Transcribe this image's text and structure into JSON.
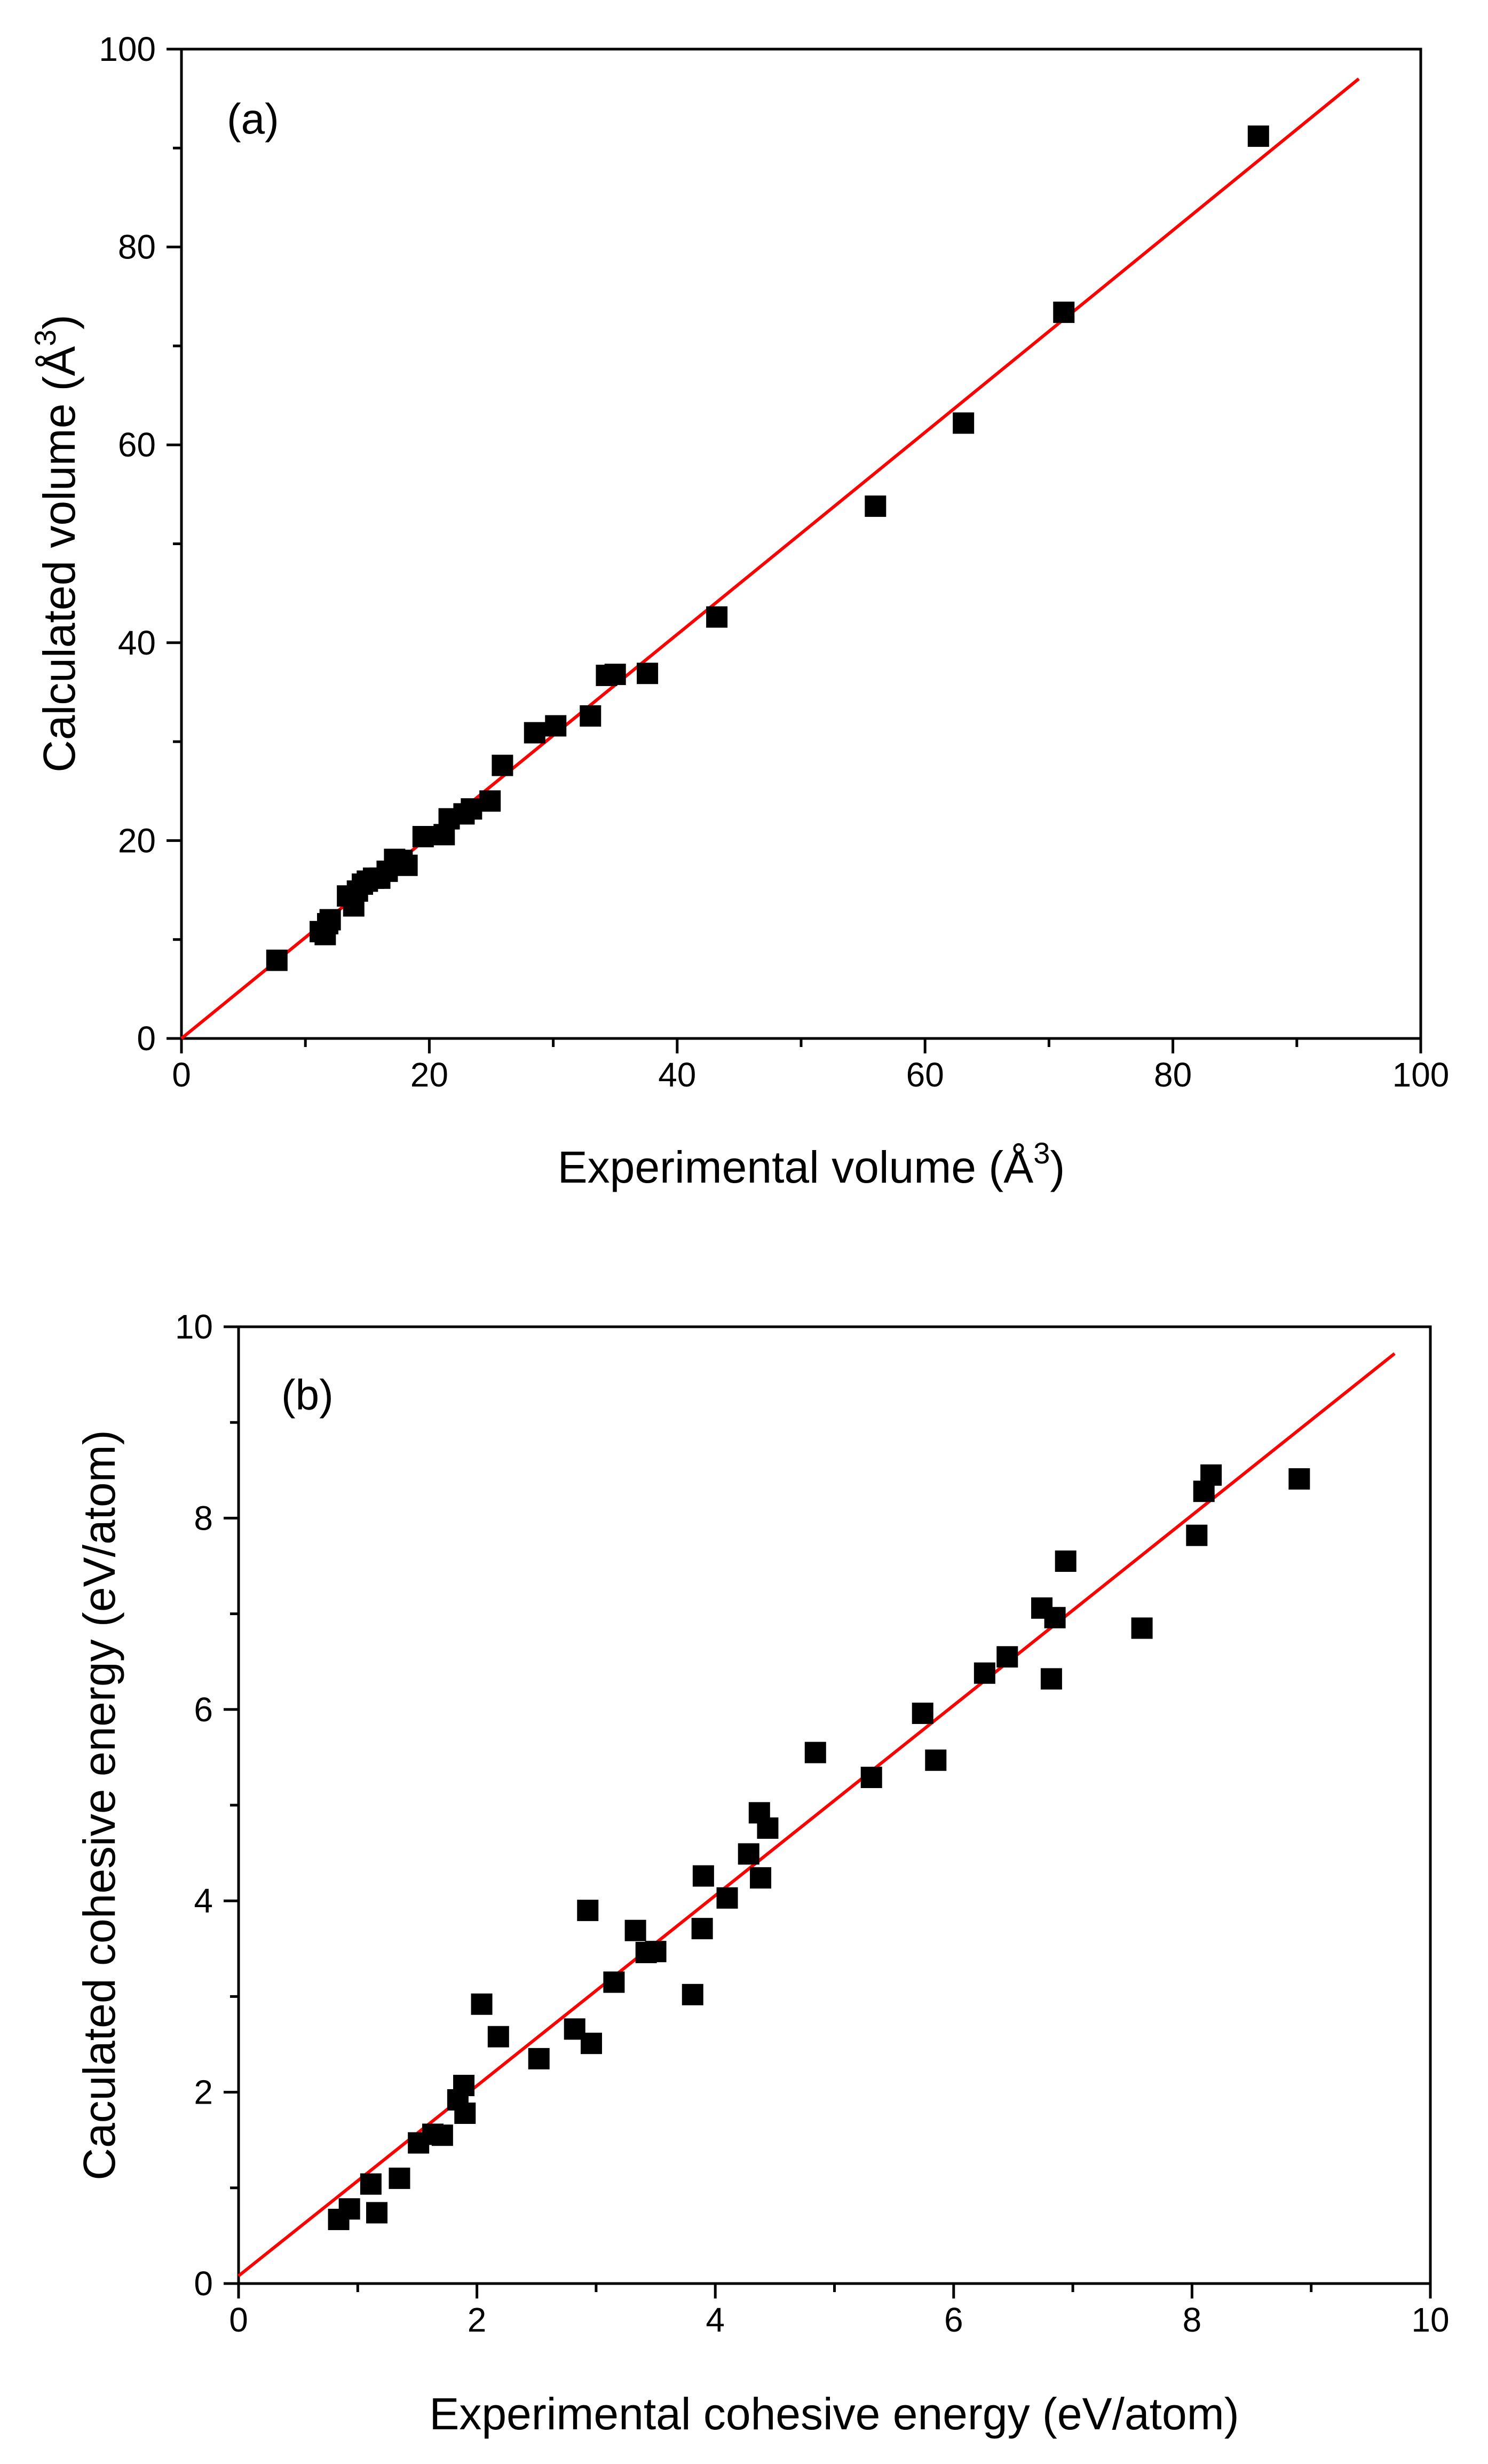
{
  "colors": {
    "axis": "#000000",
    "fit_line": "#ff0000",
    "markers": "#000000",
    "background": "#ffffff"
  },
  "chart_data": [
    {
      "type": "scatter",
      "panel": "(a)",
      "xlabel": "Experimental volume (Å",
      "ylabel": "Calculated volume (Å",
      "label_superscript": "3",
      "label_suffix": ")",
      "xlim": [
        0,
        100
      ],
      "ylim": [
        0,
        100
      ],
      "xticks": [
        "0",
        "20",
        "40",
        "60",
        "80",
        "100"
      ],
      "yticks": [
        "0",
        "20",
        "40",
        "60",
        "80",
        "100"
      ],
      "fit_line": {
        "x": [
          0,
          95
        ],
        "y": [
          0,
          97
        ]
      },
      "series": [
        {
          "name": "data",
          "marker": "square",
          "x": [
            7.7,
            11.2,
            11.6,
            11.8,
            12.0,
            13.4,
            13.9,
            14.2,
            14.6,
            15.0,
            15.5,
            16.0,
            16.6,
            17.2,
            17.8,
            18.2,
            19.5,
            21.2,
            21.6,
            22.8,
            23.4,
            24.9,
            25.9,
            28.5,
            30.2,
            33.0,
            34.3,
            35.0,
            37.6,
            43.2,
            56.0,
            63.1,
            71.2,
            86.9
          ],
          "y": [
            7.9,
            10.8,
            10.5,
            11.6,
            12.0,
            14.4,
            13.4,
            14.9,
            15.6,
            15.9,
            16.2,
            16.2,
            16.9,
            18.1,
            18.0,
            17.5,
            20.4,
            20.6,
            22.2,
            22.7,
            23.2,
            24.0,
            27.6,
            30.9,
            31.6,
            32.6,
            36.7,
            36.8,
            36.9,
            42.6,
            53.8,
            62.2,
            73.4,
            91.2
          ]
        }
      ]
    },
    {
      "type": "scatter",
      "panel": "(b)",
      "xlabel": "Experimental cohesive energy (eV/atom)",
      "ylabel": "Caculated cohesive energy (eV/atom)",
      "xlim": [
        0,
        10
      ],
      "ylim": [
        0,
        10
      ],
      "xticks": [
        "0",
        "2",
        "4",
        "6",
        "8",
        "10"
      ],
      "yticks": [
        "0",
        "2",
        "4",
        "6",
        "8",
        "10"
      ],
      "fit_line": {
        "x": [
          0,
          9.7
        ],
        "y": [
          0.08,
          9.72
        ]
      },
      "series": [
        {
          "name": "data",
          "marker": "square",
          "x": [
            0.84,
            0.93,
            1.11,
            1.16,
            1.35,
            1.51,
            1.63,
            1.71,
            1.84,
            1.89,
            1.9,
            2.04,
            2.18,
            2.52,
            2.82,
            2.93,
            2.96,
            3.15,
            3.33,
            3.42,
            3.5,
            3.81,
            3.89,
            3.9,
            4.1,
            4.28,
            4.37,
            4.38,
            4.44,
            4.84,
            5.31,
            5.74,
            5.85,
            6.26,
            6.45,
            6.74,
            6.82,
            6.85,
            6.94,
            7.58,
            8.04,
            8.1,
            8.16,
            8.9
          ],
          "y": [
            0.67,
            0.78,
            1.04,
            0.74,
            1.1,
            1.47,
            1.56,
            1.55,
            1.92,
            2.07,
            1.78,
            2.92,
            2.58,
            2.35,
            2.66,
            3.9,
            2.51,
            3.15,
            3.69,
            3.46,
            3.47,
            3.02,
            3.71,
            4.26,
            4.03,
            4.49,
            4.92,
            4.24,
            4.76,
            5.55,
            5.29,
            5.96,
            5.47,
            6.38,
            6.55,
            7.06,
            6.32,
            6.96,
            7.55,
            6.85,
            7.82,
            8.28,
            8.45,
            8.41
          ]
        }
      ]
    }
  ]
}
